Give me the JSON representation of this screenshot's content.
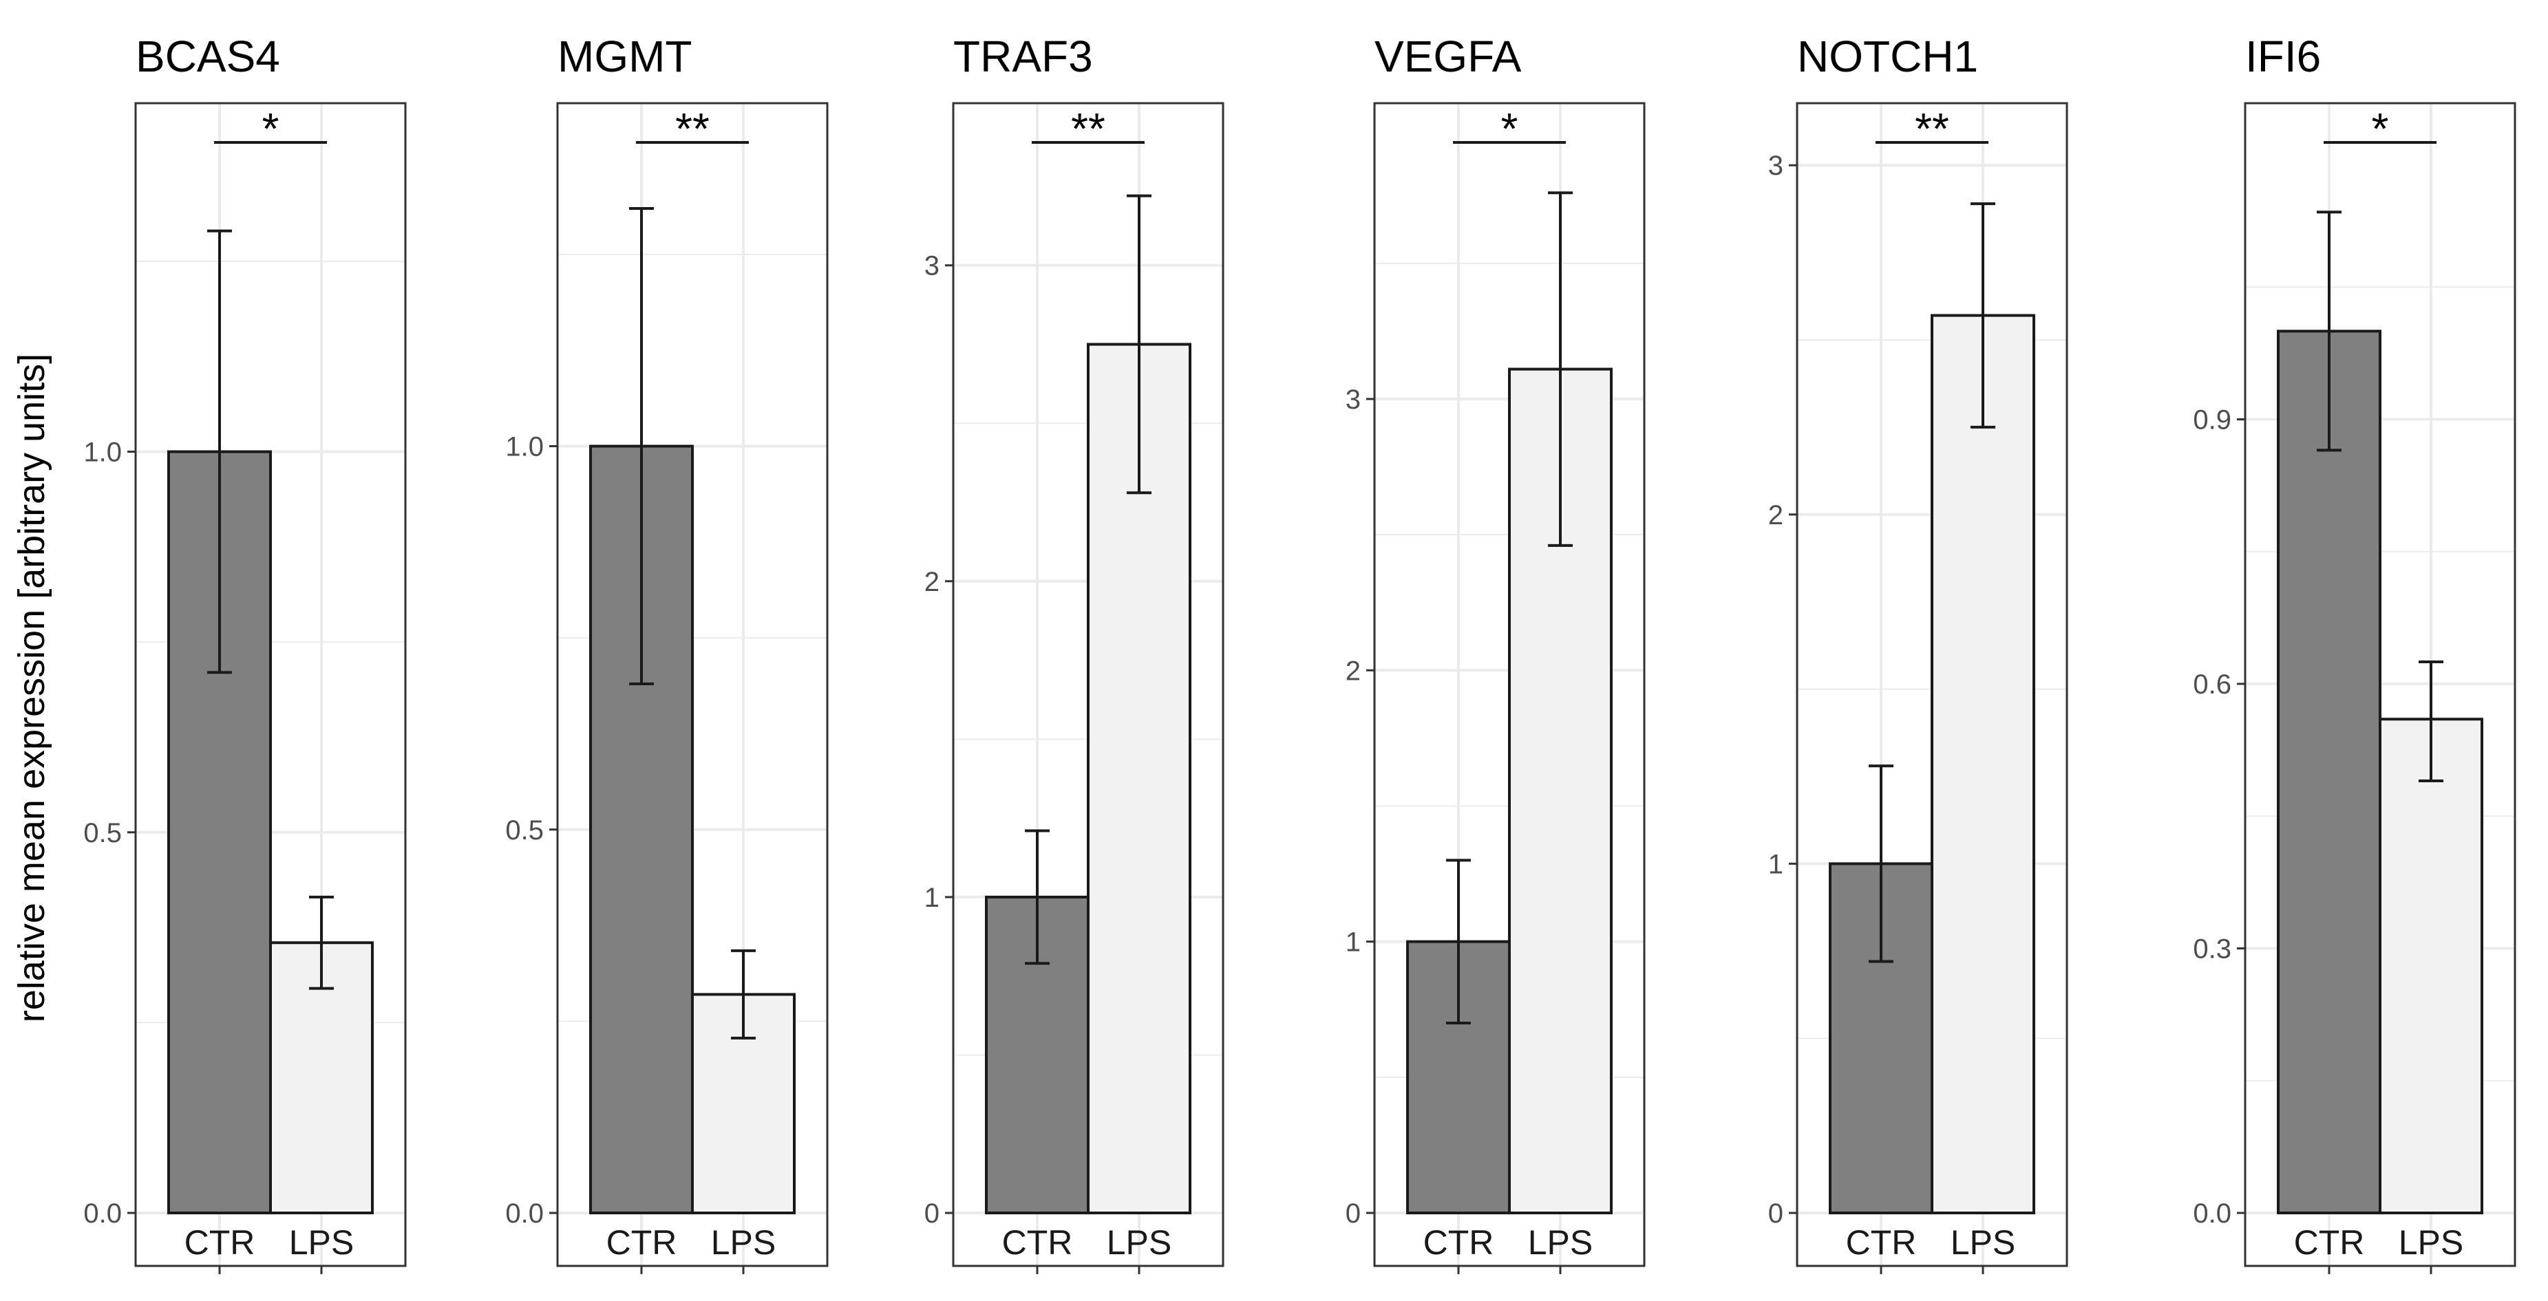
{
  "chart_data": {
    "type": "bar",
    "ylabel": "relative mean expression [arbitrary units]",
    "categories": [
      "CTR",
      "LPS"
    ],
    "colors": {
      "CTR": "#808080",
      "LPS": "#f2f2f2",
      "outline": "#1a1a1a",
      "grid": "#ebebeb",
      "panel_border": "#333333"
    },
    "grid": true,
    "legend": "none",
    "panels": [
      {
        "title": "BCAS4",
        "values": [
          1.0,
          0.355
        ],
        "error_low": [
          0.71,
          0.295
        ],
        "error_high": [
          1.29,
          0.415
        ],
        "ylim": [
          0,
          1.39
        ],
        "yticks": [
          0.0,
          0.5,
          1.0
        ],
        "ytick_labels": [
          "0.0",
          "0.5",
          "1.0"
        ],
        "significance": "*"
      },
      {
        "title": "MGMT",
        "values": [
          1.0,
          0.285
        ],
        "error_low": [
          0.69,
          0.228
        ],
        "error_high": [
          1.31,
          0.342
        ],
        "ylim": [
          0,
          1.38
        ],
        "yticks": [
          0.0,
          0.5,
          1.0
        ],
        "ytick_labels": [
          "0.0",
          "0.5",
          "1.0"
        ],
        "significance": "**"
      },
      {
        "title": "TRAF3",
        "values": [
          1.0,
          2.75
        ],
        "error_low": [
          0.79,
          2.28
        ],
        "error_high": [
          1.21,
          3.22
        ],
        "ylim": [
          0,
          3.35
        ],
        "yticks": [
          0,
          1,
          2,
          3
        ],
        "ytick_labels": [
          "0",
          "1",
          "2",
          "3"
        ],
        "significance": "**"
      },
      {
        "title": "VEGFA",
        "values": [
          1.0,
          3.11
        ],
        "error_low": [
          0.7,
          2.46
        ],
        "error_high": [
          1.3,
          3.76
        ],
        "ylim": [
          0,
          3.9
        ],
        "yticks": [
          0,
          1,
          2,
          3
        ],
        "ytick_labels": [
          "0",
          "1",
          "2",
          "3"
        ],
        "significance": "*"
      },
      {
        "title": "NOTCH1",
        "values": [
          1.0,
          2.57
        ],
        "error_low": [
          0.72,
          2.25
        ],
        "error_high": [
          1.28,
          2.89
        ],
        "ylim": [
          0,
          3.03
        ],
        "yticks": [
          0,
          1,
          2,
          3
        ],
        "ytick_labels": [
          "0",
          "1",
          "2",
          "3"
        ],
        "significance": "**"
      },
      {
        "title": "IFI6",
        "values": [
          1.0,
          0.56
        ],
        "error_low": [
          0.865,
          0.49
        ],
        "error_high": [
          1.135,
          0.625
        ],
        "ylim": [
          0,
          1.2
        ],
        "yticks": [
          0.0,
          0.3,
          0.6,
          0.9
        ],
        "ytick_labels": [
          "0.0",
          "0.3",
          "0.6",
          "0.9"
        ],
        "significance": "*"
      }
    ]
  }
}
